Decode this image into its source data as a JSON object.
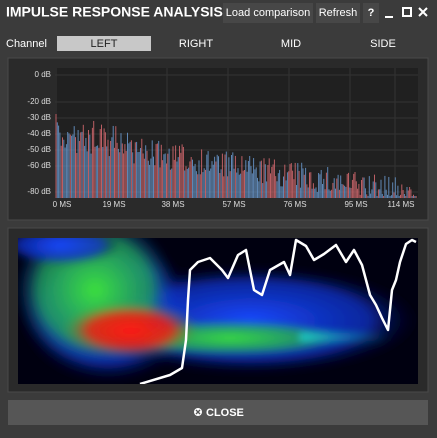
{
  "header": {
    "title": "IMPULSE RESPONSE ANALYSIS",
    "buttons": [
      "Load comparison",
      "Refresh",
      "?"
    ]
  },
  "channel": {
    "label": "Channel",
    "tabs": [
      "LEFT",
      "RIGHT",
      "MID",
      "SIDE"
    ],
    "selected": "LEFT"
  },
  "impulse_plot": {
    "y_labels": [
      "0 dB",
      "-20 dB",
      "-30 dB",
      "-40 dB",
      "-50 dB",
      "-60 dB",
      "-80 dB"
    ],
    "x_labels": [
      "0 MS",
      "19 MS",
      "38 MS",
      "57 MS",
      "76 MS",
      "95 MS",
      "114 MS"
    ]
  },
  "footer": {
    "button": "CLOSE"
  }
}
